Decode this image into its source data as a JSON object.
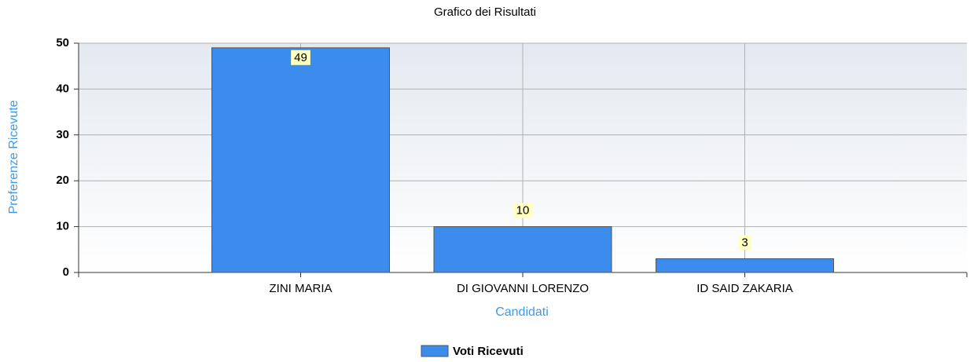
{
  "chart_data": {
    "type": "bar",
    "title": "Grafico dei Risultati",
    "x_label": "Candidati",
    "y_label": "Preferenze Ricevute",
    "categories": [
      "ZINI MARIA",
      "DI GIOVANNI LORENZO",
      "ID SAID ZAKARIA"
    ],
    "series": [
      {
        "name": "Voti Ricevuti",
        "color": "#3b8ced",
        "values": [
          49,
          10,
          3
        ]
      }
    ],
    "ylim": [
      0,
      50
    ],
    "yticks": [
      0,
      10,
      20,
      30,
      40,
      50
    ],
    "grid": true,
    "legend": "bottom"
  }
}
